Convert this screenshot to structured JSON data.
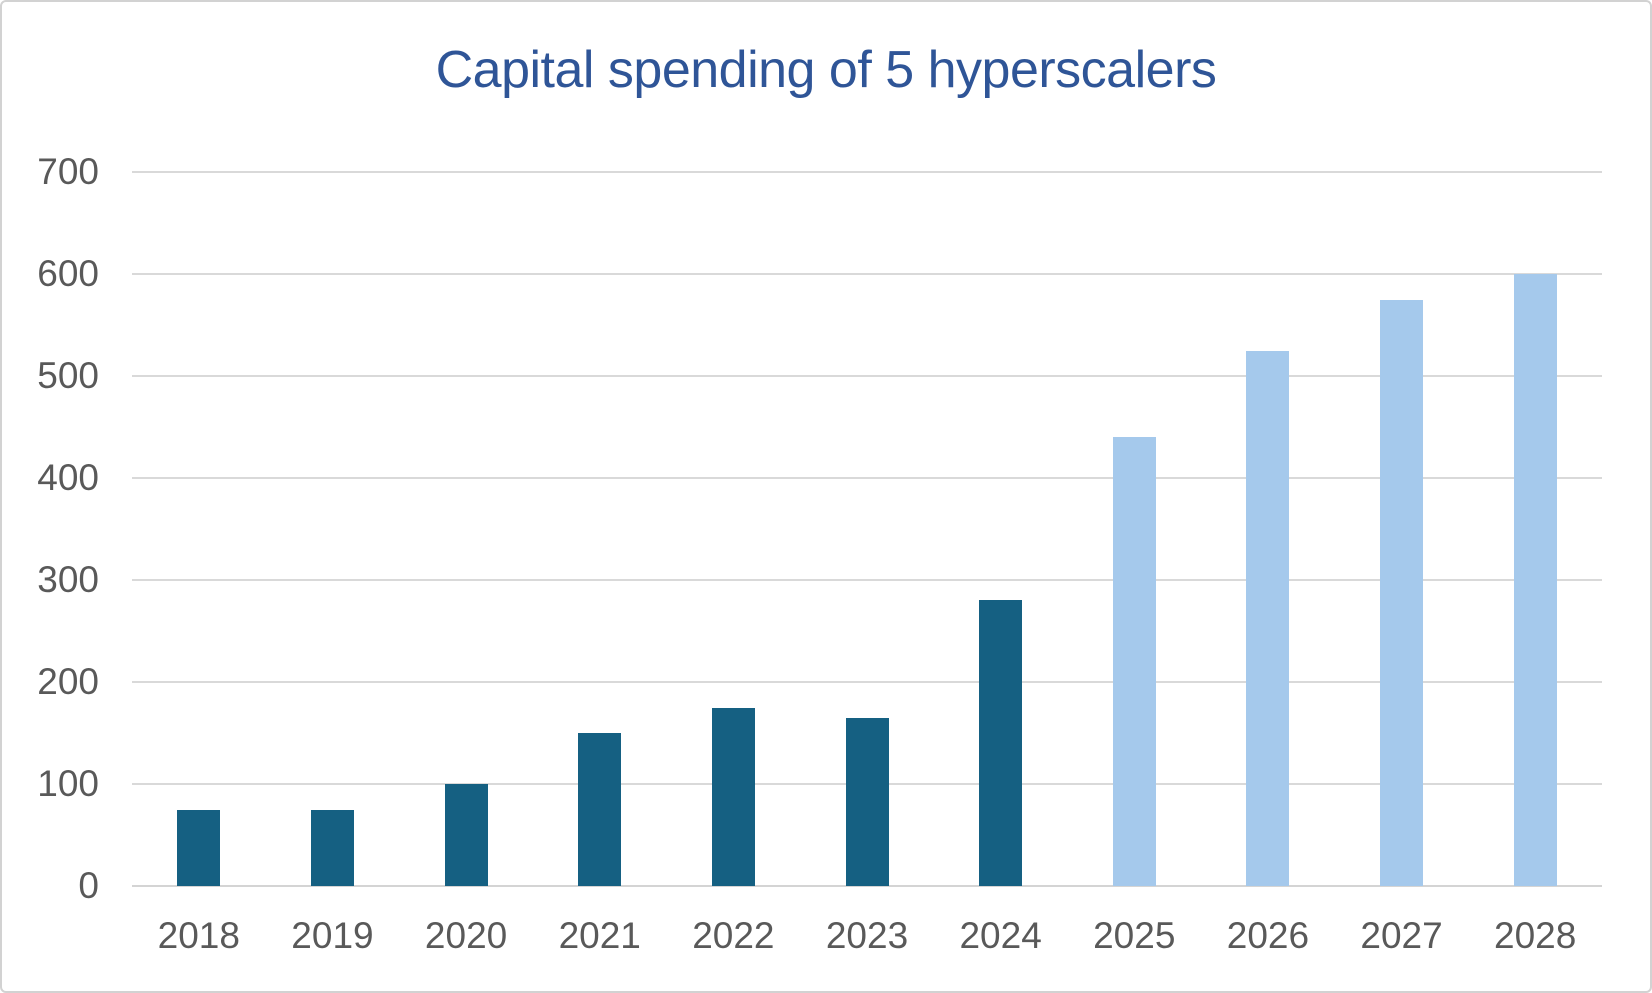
{
  "page": {
    "background": "#ffffff",
    "border_color": "#d2d2d2"
  },
  "chart_data": {
    "type": "bar",
    "title": "Capital spending of 5 hyperscalers",
    "title_color": "#2f5597",
    "categories": [
      "2018",
      "2019",
      "2020",
      "2021",
      "2022",
      "2023",
      "2024",
      "2025",
      "2026",
      "2027",
      "2028"
    ],
    "values": [
      75,
      75,
      100,
      150,
      175,
      165,
      280,
      440,
      525,
      575,
      600
    ],
    "bar_colors": [
      "#156082",
      "#156082",
      "#156082",
      "#156082",
      "#156082",
      "#156082",
      "#156082",
      "#A5C9EC",
      "#A5C9EC",
      "#A5C9EC",
      "#A5C9EC"
    ],
    "color_legend": {
      "dark_bars_hex": "#156082",
      "light_bars_hex": "#A5C9EC"
    },
    "xlabel": "",
    "ylabel": "",
    "ylim": [
      0,
      700
    ],
    "ytick_step": 100,
    "ytick_labels": [
      "0",
      "100",
      "200",
      "300",
      "400",
      "500",
      "600",
      "700"
    ],
    "grid": true,
    "legend_position": "none",
    "axis_label_color": "#595959",
    "gridline_color": "#d9d9d9",
    "axis_line_color": "#d4d4d4"
  }
}
